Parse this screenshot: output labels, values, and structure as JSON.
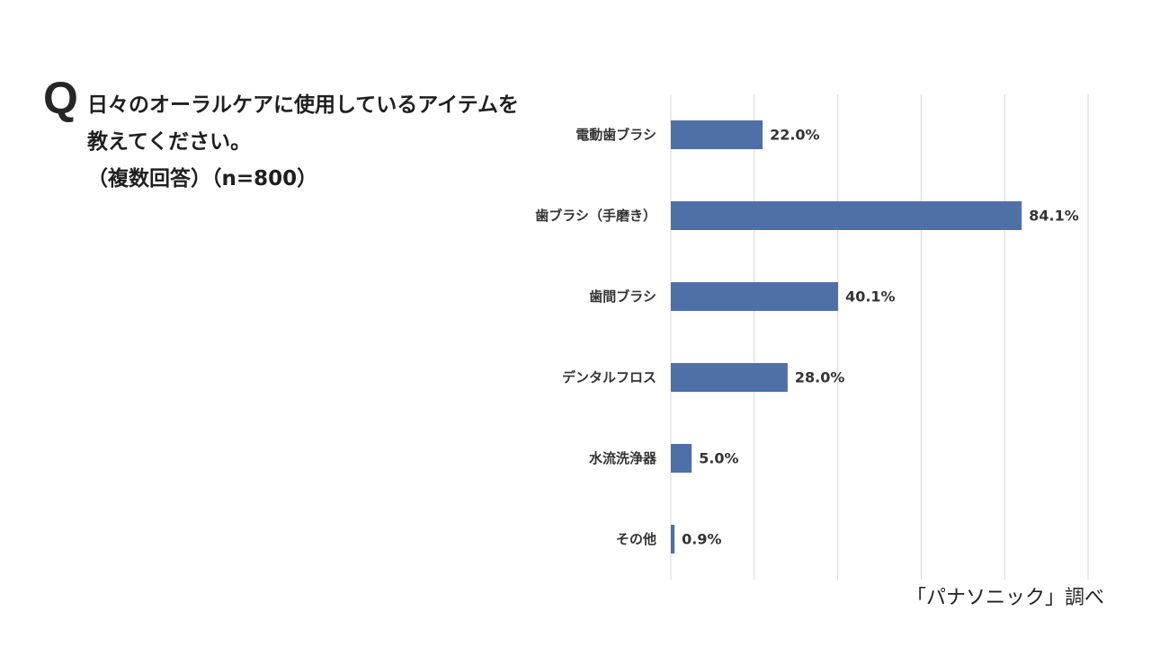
{
  "question": {
    "mark": "Q",
    "lines": [
      "日々のオーラルケアに使用しているアイテムを",
      "教えてください。",
      "（複数回答）（n=800）"
    ]
  },
  "chart_data": {
    "type": "bar",
    "orientation": "horizontal",
    "categories": [
      "電動歯ブラシ",
      "歯ブラシ（手磨き）",
      "歯間ブラシ",
      "デンタルフロス",
      "水流洗浄器",
      "その他"
    ],
    "values": [
      22.0,
      84.1,
      40.1,
      28.0,
      5.0,
      0.9
    ],
    "value_labels": [
      "22.0%",
      "84.1%",
      "40.1%",
      "28.0%",
      "5.0%",
      "0.9%"
    ],
    "xlim": [
      0,
      100
    ],
    "grid": true,
    "grid_step": 20,
    "colors": {
      "bar": "#4f6fa7",
      "grid": "#d9d9d9"
    }
  },
  "footer": {
    "source": "「パナソニック」調べ"
  }
}
